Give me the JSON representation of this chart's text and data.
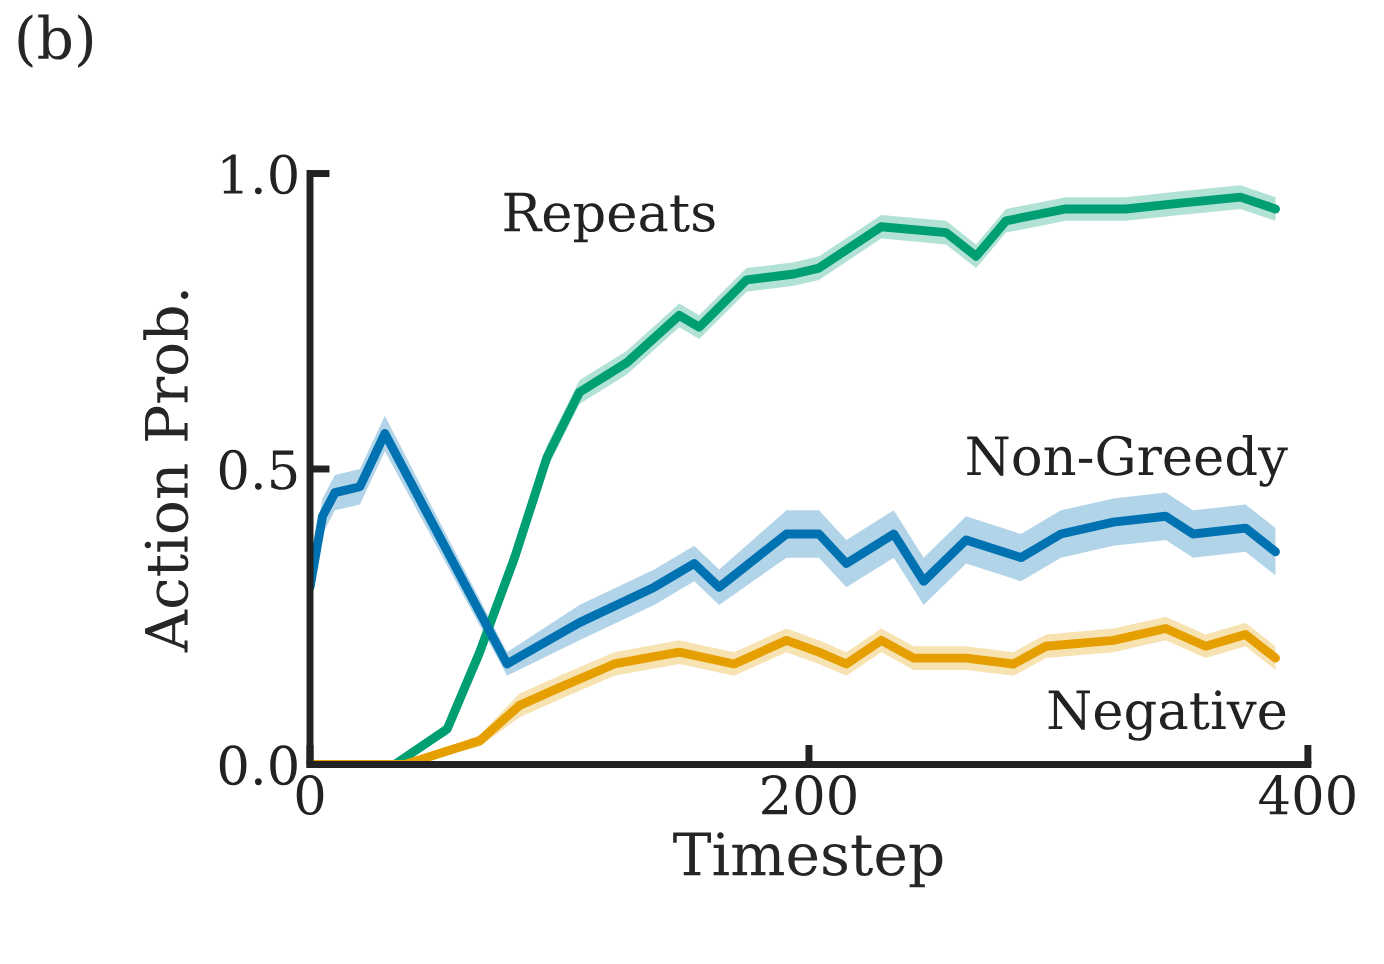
{
  "chart_data": {
    "type": "line",
    "xlabel": "Timestep",
    "ylabel": "Action Prob.",
    "annotations": [
      "(b)"
    ],
    "xlim": [
      0,
      400
    ],
    "xticks": [
      0,
      200,
      400
    ],
    "ylim": [
      0,
      1
    ],
    "yticks": [
      {
        "value": 0,
        "label": "0.0"
      },
      {
        "value": 0.5,
        "label": "0.5"
      },
      {
        "value": 1,
        "label": "1.0"
      }
    ],
    "grid": false,
    "legend": false,
    "series": [
      {
        "name": "Repeats",
        "color": "#009e73",
        "x": [
          0,
          34,
          55,
          68,
          82,
          95,
          108,
          127,
          148,
          156,
          175,
          194,
          204,
          229,
          255,
          267,
          279,
          303,
          327,
          349,
          373,
          387
        ],
        "values": [
          0,
          0,
          0.06,
          0.19,
          0.35,
          0.52,
          0.63,
          0.68,
          0.76,
          0.74,
          0.82,
          0.83,
          0.84,
          0.91,
          0.9,
          0.86,
          0.92,
          0.94,
          0.94,
          0.95,
          0.96,
          0.94
        ],
        "lower": [
          0,
          0,
          0.05,
          0.17,
          0.33,
          0.5,
          0.61,
          0.66,
          0.74,
          0.72,
          0.8,
          0.81,
          0.82,
          0.89,
          0.88,
          0.84,
          0.9,
          0.92,
          0.92,
          0.93,
          0.94,
          0.92
        ],
        "upper": [
          0,
          0,
          0.07,
          0.21,
          0.37,
          0.54,
          0.65,
          0.7,
          0.78,
          0.76,
          0.84,
          0.85,
          0.86,
          0.93,
          0.92,
          0.88,
          0.94,
          0.96,
          0.96,
          0.97,
          0.98,
          0.96
        ]
      },
      {
        "name": "Non-Greedy",
        "color": "#0072b2",
        "x": [
          0,
          5,
          10,
          20,
          30,
          79,
          108,
          138,
          154,
          164,
          191,
          204,
          215,
          234,
          246,
          263,
          285,
          301,
          322,
          343,
          354,
          375,
          387
        ],
        "values": [
          0.3,
          0.42,
          0.46,
          0.47,
          0.56,
          0.17,
          0.24,
          0.3,
          0.34,
          0.3,
          0.39,
          0.39,
          0.34,
          0.39,
          0.31,
          0.38,
          0.35,
          0.39,
          0.41,
          0.42,
          0.39,
          0.4,
          0.36
        ],
        "lower": [
          0.27,
          0.39,
          0.43,
          0.44,
          0.53,
          0.15,
          0.21,
          0.27,
          0.31,
          0.27,
          0.35,
          0.35,
          0.3,
          0.35,
          0.27,
          0.34,
          0.31,
          0.35,
          0.37,
          0.38,
          0.35,
          0.36,
          0.32
        ],
        "upper": [
          0.33,
          0.45,
          0.49,
          0.5,
          0.59,
          0.19,
          0.27,
          0.33,
          0.37,
          0.33,
          0.43,
          0.43,
          0.38,
          0.43,
          0.35,
          0.42,
          0.39,
          0.43,
          0.45,
          0.46,
          0.43,
          0.44,
          0.4
        ]
      },
      {
        "name": "Negative",
        "color": "#e69f00",
        "x": [
          0,
          38,
          68,
          84,
          100,
          122,
          148,
          170,
          191,
          204,
          215,
          229,
          242,
          263,
          282,
          295,
          322,
          343,
          359,
          375,
          387
        ],
        "values": [
          0,
          0,
          0.04,
          0.1,
          0.13,
          0.17,
          0.19,
          0.17,
          0.21,
          0.19,
          0.17,
          0.21,
          0.18,
          0.18,
          0.17,
          0.2,
          0.21,
          0.23,
          0.2,
          0.22,
          0.18
        ],
        "lower": [
          0,
          0,
          0.03,
          0.08,
          0.11,
          0.15,
          0.17,
          0.15,
          0.19,
          0.17,
          0.15,
          0.19,
          0.16,
          0.16,
          0.15,
          0.18,
          0.19,
          0.21,
          0.18,
          0.2,
          0.16
        ],
        "upper": [
          0,
          0,
          0.05,
          0.12,
          0.15,
          0.19,
          0.21,
          0.19,
          0.23,
          0.21,
          0.19,
          0.23,
          0.2,
          0.2,
          0.19,
          0.22,
          0.23,
          0.25,
          0.22,
          0.24,
          0.2
        ]
      }
    ]
  }
}
